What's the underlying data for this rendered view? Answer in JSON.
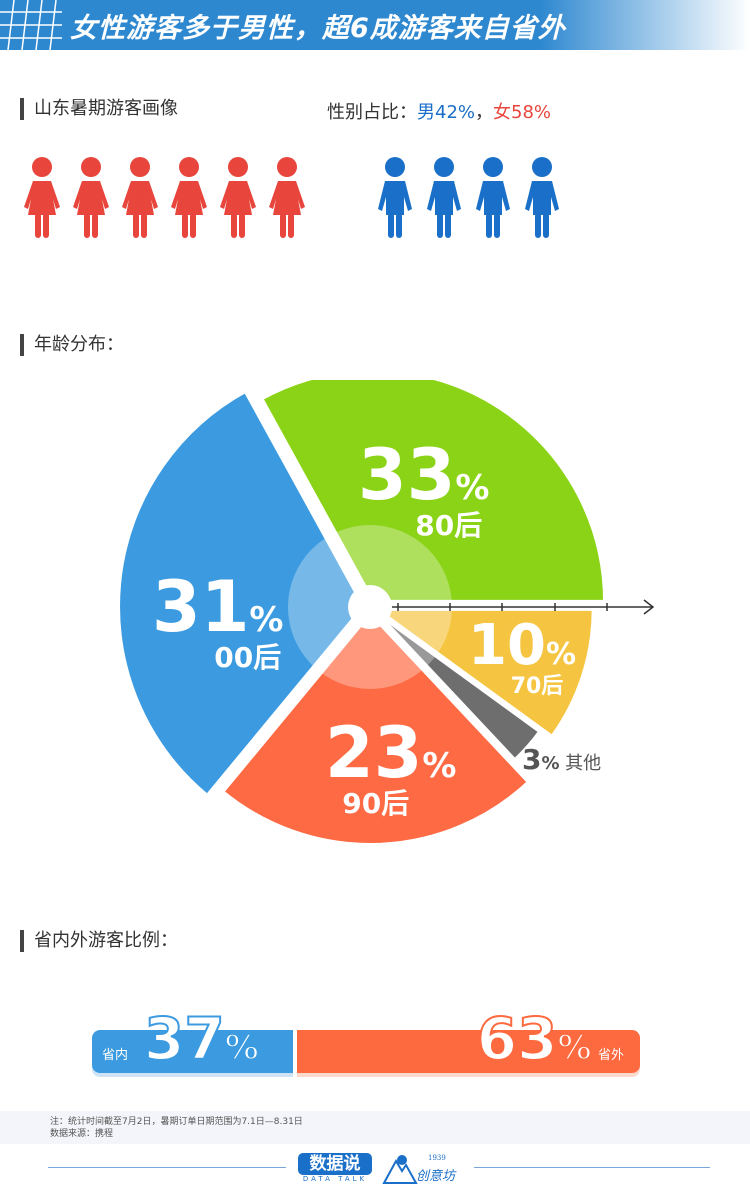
{
  "header": {
    "title": "女性游客多于男性，超6成游客来自省外"
  },
  "gender": {
    "section_title": "山东暑期游客画像",
    "ratio_label": "性别占比：",
    "male_text": "男42%",
    "sep": "，",
    "female_text": "女58%",
    "female_icons": 6,
    "male_icons": 4,
    "colors": {
      "female": "#e8453c",
      "male": "#1a6fc9"
    }
  },
  "chart_data": [
    {
      "type": "pie",
      "title": "年龄分布：",
      "slices": [
        {
          "label": "80后",
          "value": 33,
          "color": "#8bd317"
        },
        {
          "label": "70后",
          "value": 10,
          "color": "#f5c542"
        },
        {
          "label": "其他",
          "value": 3,
          "color": "#6e6e6e"
        },
        {
          "label": "90后",
          "value": 23,
          "color": "#fe6a43"
        },
        {
          "label": "00后",
          "value": 31,
          "color": "#3c9be0"
        }
      ],
      "display": [
        {
          "n": "33",
          "p": "%",
          "s": "80后"
        },
        {
          "n": "10",
          "p": "%",
          "s": "70后"
        },
        {
          "n": "3",
          "p": "%",
          "s": "其他"
        },
        {
          "n": "23",
          "p": "%",
          "s": "90后"
        },
        {
          "n": "31",
          "p": "%",
          "s": "00后"
        }
      ]
    },
    {
      "type": "bar",
      "title": "省内外游客比例：",
      "stacked": true,
      "series": [
        {
          "name": "省内",
          "value": 37,
          "color": "#3c9be0",
          "n": "37",
          "p": "%"
        },
        {
          "name": "省外",
          "value": 63,
          "color": "#fe6a40",
          "n": "63",
          "p": "%"
        }
      ]
    }
  ],
  "footer": {
    "note": "注：统计时间截至7月2日，暑期订单日期范围为7.1日—8.31日",
    "source": "数据来源：携程",
    "logo1": "数据说",
    "logo1_sub": "DATA TALK",
    "logo2": "创意坊",
    "logo2_year": "1939"
  }
}
